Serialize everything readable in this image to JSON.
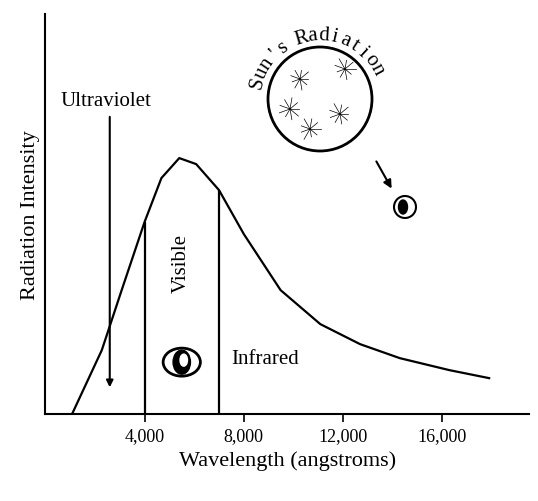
{
  "chart_data": {
    "type": "line",
    "xlabel": "Wavelength (angstroms)",
    "ylabel": "Radiation Intensity",
    "x": [
      1080,
      2280,
      3080,
      4000,
      4680,
      5400,
      6080,
      7000,
      8000,
      9480,
      11080,
      12680,
      14280,
      16280,
      17880
    ],
    "values": [
      0,
      16,
      31,
      48,
      59,
      64,
      62.5,
      56,
      45,
      31,
      22.5,
      17.5,
      14,
      11,
      9
    ],
    "color": "#000000",
    "xlim": [
      0,
      19500
    ],
    "ylim": [
      0,
      100
    ],
    "xticks": [
      {
        "value": 4000,
        "label": "4,000"
      },
      {
        "value": 8000,
        "label": "8,000"
      },
      {
        "value": 12000,
        "label": "12,000"
      },
      {
        "value": 16000,
        "label": "16,000"
      }
    ],
    "tick_labels": "x",
    "visible_range": [
      4000,
      7000
    ],
    "annotations": [
      "Ultraviolet",
      "Visible",
      "Infrared",
      "Sun's Radiation"
    ]
  }
}
